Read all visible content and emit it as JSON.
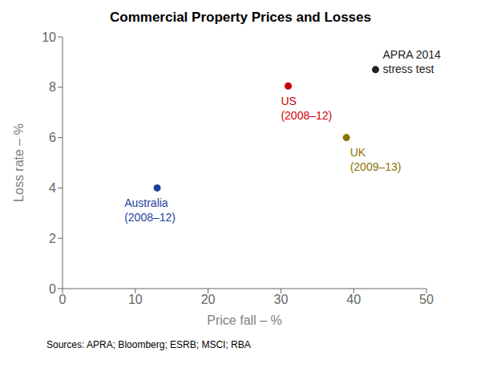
{
  "chart_data": {
    "type": "scatter",
    "title": "Commercial Property Prices and Losses",
    "x_label": "Price fall – %",
    "y_label": "Loss rate – %",
    "points": [
      {
        "x": 13,
        "y": 4.0,
        "color": "#1f3f9f",
        "label": [
          "Australia",
          "(2008–12)"
        ],
        "label_x": 8.5,
        "label_y": 3.65
      },
      {
        "x": 31,
        "y": 8.05,
        "color": "#cc0000",
        "label": [
          "US",
          "(2008–12)"
        ],
        "label_x": 30.0,
        "label_y": 7.7
      },
      {
        "x": 39,
        "y": 6.0,
        "color": "#8b7300",
        "label": [
          "UK",
          "(2009–13)"
        ],
        "label_x": 39.5,
        "label_y": 5.65
      },
      {
        "x": 43,
        "y": 8.7,
        "color": "#222222",
        "label": [
          "APRA 2014",
          "stress test"
        ],
        "label_x": 44.0,
        "label_y": 9.55
      }
    ],
    "xlim": [
      0,
      50
    ],
    "ylim": [
      0,
      10
    ],
    "xticks": [
      0,
      10,
      20,
      30,
      40,
      50
    ],
    "yticks": [
      0,
      2,
      4,
      6,
      8,
      10
    ],
    "grid": false,
    "source": "Sources: APRA; Bloomberg; ESRB; MSCI; RBA"
  }
}
